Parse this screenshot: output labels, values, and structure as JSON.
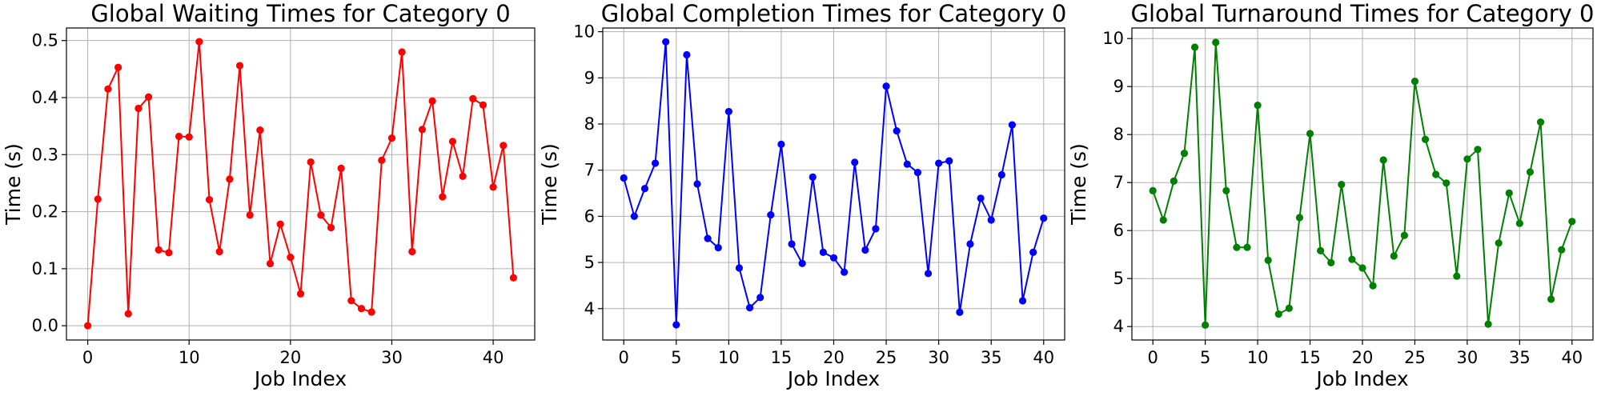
{
  "chart_data": [
    {
      "type": "line",
      "title": "Global Waiting Times for Category 0",
      "xlabel": "Job Index",
      "ylabel": "Time (s)",
      "xlim": [
        -2.1,
        44.1
      ],
      "ylim": [
        -0.025,
        0.522
      ],
      "xticks": [
        0,
        10,
        20,
        30,
        40
      ],
      "yticks": [
        0.0,
        0.1,
        0.2,
        0.3,
        0.4,
        0.5
      ],
      "ytick_format": "fixed1",
      "grid": true,
      "color": "#ff0000",
      "x": [
        0,
        1,
        2,
        3,
        4,
        5,
        6,
        7,
        8,
        9,
        10,
        11,
        12,
        13,
        14,
        15,
        16,
        17,
        18,
        19,
        20,
        21,
        22,
        23,
        24,
        25,
        26,
        27,
        28,
        29,
        30,
        31,
        32,
        33,
        34,
        35,
        36,
        37,
        38,
        39,
        40,
        41,
        42
      ],
      "values": [
        0.0,
        0.222,
        0.415,
        0.453,
        0.021,
        0.381,
        0.401,
        0.133,
        0.128,
        0.332,
        0.331,
        0.498,
        0.221,
        0.13,
        0.257,
        0.456,
        0.194,
        0.343,
        0.109,
        0.178,
        0.12,
        0.056,
        0.287,
        0.194,
        0.172,
        0.276,
        0.044,
        0.03,
        0.024,
        0.29,
        0.329,
        0.48,
        0.13,
        0.344,
        0.394,
        0.226,
        0.323,
        0.262,
        0.398,
        0.387,
        0.243,
        0.316,
        0.084
      ]
    },
    {
      "type": "line",
      "title": "Global Completion Times for Category 0",
      "xlabel": "Job Index",
      "ylabel": "Time (s)",
      "xlim": [
        -2.0,
        42.0
      ],
      "ylim": [
        3.32,
        10.08
      ],
      "xticks": [
        0,
        5,
        10,
        15,
        20,
        25,
        30,
        35,
        40
      ],
      "yticks": [
        4,
        5,
        6,
        7,
        8,
        9,
        10
      ],
      "ytick_format": "int",
      "grid": true,
      "color": "#0000ff",
      "x": [
        0,
        1,
        2,
        3,
        4,
        5,
        6,
        7,
        8,
        9,
        10,
        11,
        12,
        13,
        14,
        15,
        16,
        17,
        18,
        19,
        20,
        21,
        22,
        23,
        24,
        25,
        26,
        27,
        28,
        29,
        30,
        31,
        32,
        33,
        34,
        35,
        36,
        37,
        38,
        39,
        40
      ],
      "values": [
        6.83,
        6.0,
        6.6,
        7.15,
        9.78,
        3.65,
        9.5,
        6.7,
        5.52,
        5.32,
        8.27,
        4.88,
        4.02,
        4.24,
        6.03,
        7.56,
        5.4,
        4.98,
        6.85,
        5.22,
        5.1,
        4.79,
        7.17,
        5.27,
        5.73,
        8.82,
        7.85,
        7.13,
        6.95,
        4.76,
        7.15,
        7.2,
        3.92,
        5.4,
        6.39,
        5.92,
        6.9,
        7.98,
        4.17,
        5.22,
        5.96
      ]
    },
    {
      "type": "line",
      "title": "Global Turnaround Times for Category 0",
      "xlabel": "Job Index",
      "ylabel": "Time (s)",
      "xlim": [
        -2.0,
        42.0
      ],
      "ylim": [
        3.72,
        10.22
      ],
      "xticks": [
        0,
        5,
        10,
        15,
        20,
        25,
        30,
        35,
        40
      ],
      "yticks": [
        4,
        5,
        6,
        7,
        8,
        9,
        10
      ],
      "ytick_format": "int",
      "grid": true,
      "color": "#008000",
      "x": [
        0,
        1,
        2,
        3,
        4,
        5,
        6,
        7,
        8,
        9,
        10,
        11,
        12,
        13,
        14,
        15,
        16,
        17,
        18,
        19,
        20,
        21,
        22,
        23,
        24,
        25,
        26,
        27,
        28,
        29,
        30,
        31,
        32,
        33,
        34,
        35,
        36,
        37,
        38,
        39,
        40
      ],
      "values": [
        6.83,
        6.22,
        7.03,
        7.61,
        9.82,
        4.03,
        9.92,
        6.83,
        5.65,
        5.65,
        8.61,
        5.38,
        4.26,
        4.38,
        6.27,
        8.02,
        5.58,
        5.33,
        6.96,
        5.4,
        5.22,
        4.85,
        7.47,
        5.47,
        5.9,
        9.11,
        7.9,
        7.17,
        6.99,
        5.05,
        7.49,
        7.69,
        4.05,
        5.74,
        6.78,
        6.15,
        7.22,
        8.26,
        4.57,
        5.6,
        6.19
      ]
    }
  ]
}
